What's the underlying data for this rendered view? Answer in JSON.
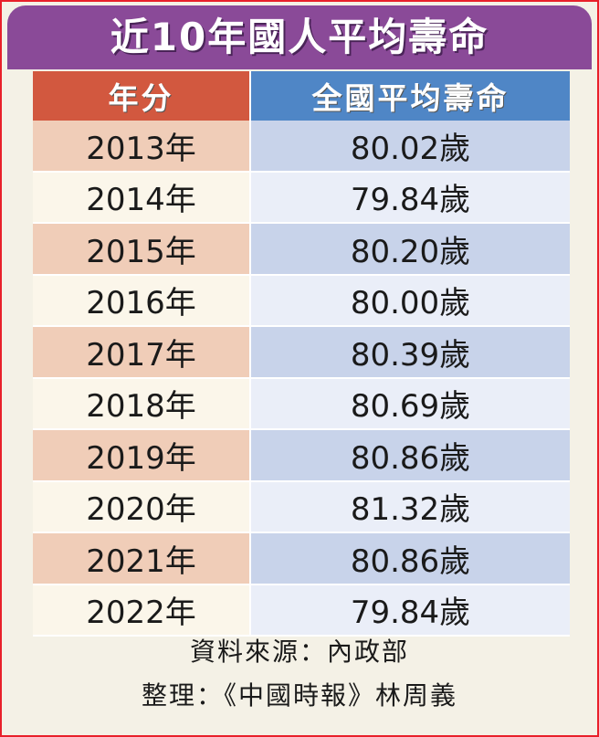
{
  "chart_data": {
    "type": "table",
    "title": "近10年國人平均壽命",
    "columns": [
      "年分",
      "全國平均壽命"
    ],
    "rows": [
      {
        "year": "2013年",
        "value_label": "80.02歲",
        "value": 80.02
      },
      {
        "year": "2014年",
        "value_label": "79.84歲",
        "value": 79.84
      },
      {
        "year": "2015年",
        "value_label": "80.20歲",
        "value": 80.2
      },
      {
        "year": "2016年",
        "value_label": "80.00歲",
        "value": 80.0
      },
      {
        "year": "2017年",
        "value_label": "80.39歲",
        "value": 80.39
      },
      {
        "year": "2018年",
        "value_label": "80.69歲",
        "value": 80.69
      },
      {
        "year": "2019年",
        "value_label": "80.86歲",
        "value": 80.86
      },
      {
        "year": "2020年",
        "value_label": "81.32歲",
        "value": 81.32
      },
      {
        "year": "2021年",
        "value_label": "80.86歲",
        "value": 80.86
      },
      {
        "year": "2022年",
        "value_label": "79.84歲",
        "value": 79.84
      }
    ],
    "source": "資料來源：內政部",
    "credit": "整理：《中國時報》林周義"
  },
  "colors": {
    "title_bg": "#8a4a98",
    "year_header": "#d2583f",
    "value_header": "#4f86c6",
    "border": "#e8202a"
  }
}
